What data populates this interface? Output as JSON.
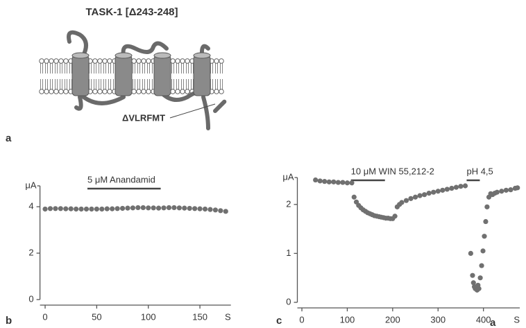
{
  "panel_a": {
    "title": "TASK-1 [Δ243-248]",
    "deletion_label": "ΔVLRFMT",
    "letter": "a"
  },
  "chart_data": [
    {
      "type": "scatter",
      "letter": "b",
      "y_unit": "μA",
      "x_unit": "S",
      "color": "#707070",
      "annotations": [
        {
          "text": "5 μM Anandamid",
          "x": [
            41,
            112
          ]
        }
      ],
      "xlim": [
        -5,
        180
      ],
      "ylim": [
        0,
        4.9
      ],
      "xticks": [
        0,
        50,
        100,
        150
      ],
      "yticks": [
        0,
        2,
        4
      ],
      "x": [
        0,
        5,
        10,
        15,
        20,
        25,
        30,
        35,
        40,
        45,
        50,
        55,
        60,
        65,
        70,
        75,
        80,
        85,
        90,
        95,
        100,
        105,
        110,
        115,
        120,
        125,
        130,
        135,
        140,
        145,
        150,
        155,
        160,
        165,
        170,
        175
      ],
      "values": [
        3.9,
        3.92,
        3.92,
        3.92,
        3.91,
        3.91,
        3.9,
        3.9,
        3.9,
        3.9,
        3.9,
        3.9,
        3.91,
        3.91,
        3.92,
        3.93,
        3.94,
        3.95,
        3.96,
        3.96,
        3.95,
        3.95,
        3.94,
        3.95,
        3.96,
        3.96,
        3.95,
        3.94,
        3.93,
        3.92,
        3.91,
        3.9,
        3.88,
        3.86,
        3.83,
        3.8
      ]
    },
    {
      "type": "scatter",
      "letter": "c",
      "y_unit": "μA",
      "x_unit": "S",
      "color": "#707070",
      "annotations": [
        {
          "text": "10 μM WIN 55,212-2",
          "x": [
            108,
            183
          ]
        },
        {
          "text": "pH 4,5",
          "x": [
            363,
            392
          ]
        }
      ],
      "xlim": [
        -10,
        480
      ],
      "ylim": [
        0,
        2.55
      ],
      "xticks": [
        0,
        100,
        200,
        300,
        400
      ],
      "yticks": [
        0,
        1,
        2
      ],
      "x": [
        30,
        40,
        50,
        60,
        70,
        80,
        90,
        100,
        110,
        115,
        120,
        125,
        130,
        135,
        140,
        145,
        150,
        155,
        160,
        165,
        170,
        175,
        180,
        185,
        190,
        195,
        200,
        205,
        210,
        215,
        220,
        230,
        240,
        250,
        260,
        270,
        280,
        290,
        300,
        310,
        320,
        330,
        340,
        350,
        360,
        372,
        376,
        378,
        380,
        382,
        384,
        386,
        388,
        390,
        393,
        396,
        399,
        402,
        405,
        408,
        412,
        416,
        420,
        425,
        430,
        440,
        450,
        460,
        470,
        475
      ],
      "values": [
        2.5,
        2.48,
        2.47,
        2.46,
        2.46,
        2.45,
        2.45,
        2.44,
        2.44,
        2.15,
        2.05,
        1.98,
        1.93,
        1.89,
        1.86,
        1.83,
        1.81,
        1.79,
        1.77,
        1.76,
        1.75,
        1.74,
        1.73,
        1.72,
        1.72,
        1.71,
        1.71,
        1.76,
        1.95,
        2.0,
        2.04,
        2.08,
        2.12,
        2.15,
        2.18,
        2.2,
        2.23,
        2.25,
        2.27,
        2.29,
        2.31,
        2.33,
        2.35,
        2.37,
        2.38,
        1.0,
        0.55,
        0.4,
        0.32,
        0.28,
        0.3,
        0.25,
        0.35,
        0.28,
        0.5,
        0.75,
        1.05,
        1.35,
        1.65,
        1.95,
        2.15,
        2.22,
        2.2,
        2.23,
        2.25,
        2.27,
        2.29,
        2.3,
        2.33,
        2.34
      ]
    }
  ],
  "stray_letter": "a"
}
